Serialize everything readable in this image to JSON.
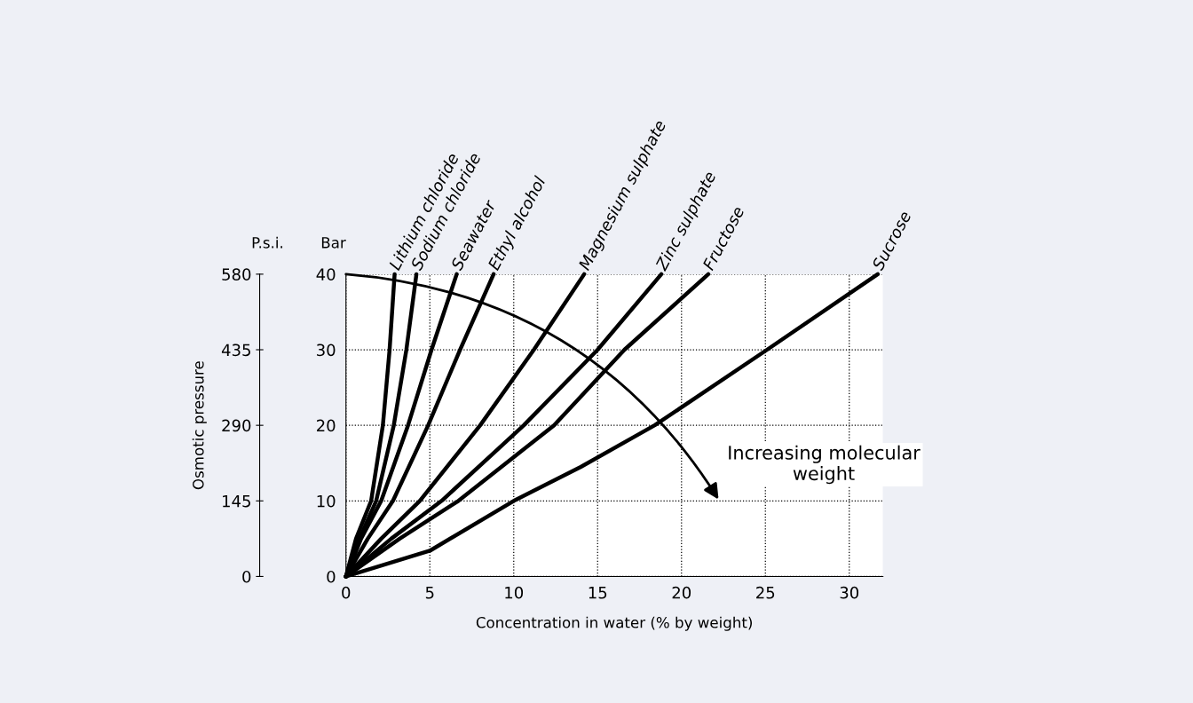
{
  "chart_data": {
    "type": "line",
    "xlabel": "Concentration in water (% by weight)",
    "ylabel": "Bar",
    "y2label": "P.s.i.",
    "xlim": [
      0,
      32
    ],
    "xticks": [
      0,
      5,
      10,
      15,
      20,
      25,
      30
    ],
    "ylim": [
      0,
      40
    ],
    "yticks": [
      0,
      10,
      20,
      30,
      40
    ],
    "y2lim": [
      0,
      580
    ],
    "y2ticks": [
      0,
      145,
      290,
      435,
      580
    ],
    "grid": true,
    "line_style": "solid",
    "marker": "none",
    "series": [
      {
        "name": "Lithium chloride",
        "color": "#000000",
        "x": [
          0,
          0.6,
          1.5,
          2.2,
          2.6,
          2.9
        ],
        "values": [
          0,
          5,
          10,
          20,
          30,
          40
        ]
      },
      {
        "name": "Sodium chloride",
        "color": "#000000",
        "x": [
          0,
          0.8,
          1.8,
          2.85,
          3.6,
          4.2
        ],
        "values": [
          0,
          5,
          10,
          20,
          30,
          40
        ]
      },
      {
        "name": "Seawater",
        "color": "#000000",
        "x": [
          0,
          0.9,
          2.1,
          3.7,
          5.1,
          6.6
        ],
        "values": [
          0,
          5,
          10,
          20,
          30,
          40
        ]
      },
      {
        "name": "Ethyl alcohol",
        "color": "#000000",
        "x": [
          0,
          1.3,
          2.8,
          4.9,
          6.8,
          8.8
        ],
        "values": [
          0,
          5,
          10,
          20,
          30,
          40
        ]
      },
      {
        "name": "Magnesium sulphate",
        "color": "#000000",
        "x": [
          0,
          2.1,
          4.4,
          8.0,
          11.2,
          14.2
        ],
        "values": [
          0,
          5,
          10,
          20,
          30,
          40
        ]
      },
      {
        "name": "Zinc sulphate",
        "color": "#000000",
        "x": [
          0,
          2.7,
          5.7,
          10.6,
          15.0,
          18.8
        ],
        "values": [
          0,
          5,
          10,
          20,
          30,
          40
        ]
      },
      {
        "name": "Fructose",
        "color": "#000000",
        "x": [
          0,
          3.2,
          6.7,
          12.4,
          16.6,
          21.6
        ],
        "values": [
          0,
          5,
          10,
          20,
          30,
          40
        ]
      },
      {
        "name": "Sucrose",
        "color": "#000000",
        "x": [
          0,
          5,
          10,
          14,
          18.4,
          25.1,
          31.7
        ],
        "values": [
          0,
          3.4,
          10,
          14.5,
          20,
          30,
          40
        ]
      }
    ],
    "annotations": [
      "Osmotic pressure",
      "Increasing molecular\nweight"
    ]
  }
}
